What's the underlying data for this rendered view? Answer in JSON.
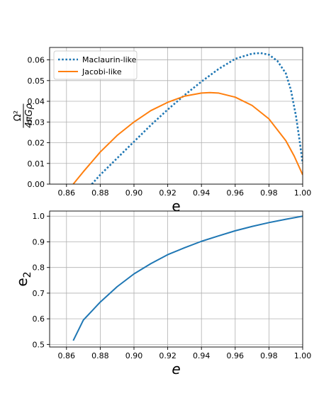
{
  "chart_data": [
    {
      "type": "line",
      "xlabel": "e",
      "ylabel_numerator": "Ω²",
      "ylabel_denominator": "4πGρ",
      "xlim": [
        0.85,
        1.0
      ],
      "ylim": [
        0.0,
        0.066
      ],
      "xticks": [
        0.86,
        0.88,
        0.9,
        0.92,
        0.94,
        0.96,
        0.98,
        1.0
      ],
      "xtick_labels": [
        "0.86",
        "0.88",
        "0.90",
        "0.92",
        "0.94",
        "0.96",
        "0.98",
        "1.00"
      ],
      "yticks": [
        0.0,
        0.01,
        0.02,
        0.03,
        0.04,
        0.05,
        0.06
      ],
      "ytick_labels": [
        "0.00",
        "0.01",
        "0.02",
        "0.03",
        "0.04",
        "0.05",
        "0.06"
      ],
      "grid": true,
      "legend_position": "top-left",
      "series": [
        {
          "name": "Maclaurin-like",
          "color": "#1f77b4",
          "style": "dotted",
          "x": [
            0.875,
            0.88,
            0.89,
            0.9,
            0.91,
            0.92,
            0.93,
            0.94,
            0.95,
            0.96,
            0.97,
            0.975,
            0.98,
            0.985,
            0.99,
            0.993,
            0.996,
            0.998,
            1.0
          ],
          "y": [
            0.0,
            0.0045,
            0.0125,
            0.0205,
            0.0285,
            0.036,
            0.043,
            0.0495,
            0.0555,
            0.0605,
            0.063,
            0.0633,
            0.0625,
            0.0595,
            0.0535,
            0.0455,
            0.033,
            0.022,
            0.01
          ]
        },
        {
          "name": "Jacobi-like",
          "color": "#ff7f0e",
          "style": "solid",
          "x": [
            0.864,
            0.87,
            0.88,
            0.89,
            0.9,
            0.91,
            0.92,
            0.93,
            0.94,
            0.945,
            0.95,
            0.96,
            0.97,
            0.98,
            0.99,
            0.995,
            1.0
          ],
          "y": [
            0.0,
            0.006,
            0.0155,
            0.0235,
            0.03,
            0.0355,
            0.0395,
            0.0425,
            0.044,
            0.0442,
            0.044,
            0.042,
            0.038,
            0.0315,
            0.021,
            0.0135,
            0.0045
          ]
        }
      ]
    },
    {
      "type": "line",
      "xlabel": "e",
      "ylabel": "e",
      "ylabel_sub": "2",
      "xlim": [
        0.85,
        1.0
      ],
      "ylim": [
        0.49,
        1.02
      ],
      "xticks": [
        0.86,
        0.88,
        0.9,
        0.92,
        0.94,
        0.96,
        0.98,
        1.0
      ],
      "xtick_labels": [
        "0.86",
        "0.88",
        "0.90",
        "0.92",
        "0.94",
        "0.96",
        "0.98",
        "1.00"
      ],
      "yticks": [
        0.5,
        0.6,
        0.7,
        0.8,
        0.9,
        1.0
      ],
      "ytick_labels": [
        "0.5",
        "0.6",
        "0.7",
        "0.8",
        "0.9",
        "1.0"
      ],
      "grid": true,
      "series": [
        {
          "color": "#1f77b4",
          "style": "solid",
          "x": [
            0.864,
            0.87,
            0.88,
            0.89,
            0.9,
            0.91,
            0.92,
            0.93,
            0.94,
            0.95,
            0.96,
            0.97,
            0.98,
            0.99,
            1.0
          ],
          "y": [
            0.515,
            0.595,
            0.665,
            0.725,
            0.775,
            0.815,
            0.85,
            0.877,
            0.902,
            0.923,
            0.943,
            0.96,
            0.975,
            0.988,
            1.0
          ]
        }
      ]
    }
  ]
}
